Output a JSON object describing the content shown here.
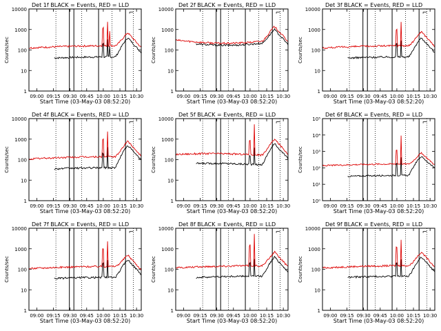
{
  "colors": {
    "events": "#000000",
    "lld": "#dd0000",
    "axes": "#000000",
    "background": "#ffffff"
  },
  "chart_data": [
    {
      "type": "line",
      "title": "Det 1f BLACK = Events, RED = LLD",
      "xlabel": "Start Time (03-May-03 08:52:20)",
      "ylabel": "Counts/sec",
      "yscale": "log",
      "xlim": [
        0,
        1
      ],
      "ylim": [
        1,
        10000
      ],
      "ytick_labels": [
        "1",
        "10",
        "100",
        "1000",
        "10000"
      ],
      "xtick_labels": [
        "09:00",
        "09:15",
        "09:30",
        "09:45",
        "10:00",
        "10:15",
        "10:30"
      ],
      "series": [
        {
          "name": "Events",
          "base": 40,
          "start": 0.22,
          "shape": "hump"
        },
        {
          "name": "LLD",
          "base": 140,
          "start": 0.0,
          "shape": "hump"
        }
      ],
      "spikes": [
        {
          "x": 0.7,
          "red": 2500,
          "black": 300
        },
        {
          "x": 0.66,
          "red": 1200,
          "black": 200
        },
        {
          "x": 0.72,
          "red": 900,
          "black": 150
        }
      ],
      "peak": {
        "x": 0.88,
        "red": 700,
        "black": 400
      },
      "solid_lines": [
        0.36,
        0.4,
        0.62,
        0.86
      ],
      "dotted_lines": [
        0.24,
        0.47,
        0.74,
        0.93
      ],
      "corner_mark": "⌐"
    },
    {
      "type": "line",
      "title": "Det 2f BLACK = Events, RED = LLD",
      "xlabel": "Start Time (03-May-03 08:52:20)",
      "ylabel": "Counts/sec",
      "yscale": "log",
      "xlim": [
        0,
        1
      ],
      "ylim": [
        1,
        10000
      ],
      "ytick_labels": [
        "1",
        "10",
        "100",
        "1000",
        "10000"
      ],
      "xtick_labels": [
        "09:00",
        "09:15",
        "09:30",
        "09:45",
        "10:00",
        "10:15",
        "10:30"
      ],
      "series": [
        {
          "name": "Events",
          "base": 200,
          "start": 0.18,
          "shape": "arch"
        },
        {
          "name": "LLD",
          "base": 250,
          "start": 0.0,
          "shape": "arch"
        }
      ],
      "spikes": [],
      "peak": {
        "x": 0.88,
        "red": 1400,
        "black": 1000
      },
      "solid_lines": [
        0.36,
        0.4,
        0.62,
        0.86
      ],
      "dotted_lines": [
        0.24,
        0.47,
        0.74,
        0.93
      ],
      "corner_mark": "⌐"
    },
    {
      "type": "line",
      "title": "Det 3f BLACK = Events, RED = LLD",
      "xlabel": "Start Time (03-May-03 08:52:20)",
      "ylabel": "Counts/sec",
      "yscale": "log",
      "xlim": [
        0,
        1
      ],
      "ylim": [
        1,
        10000
      ],
      "ytick_labels": [
        "1",
        "10",
        "100",
        "1000",
        "10000"
      ],
      "xtick_labels": [
        "09:00",
        "09:15",
        "09:30",
        "09:45",
        "10:00",
        "10:15",
        "10:30"
      ],
      "series": [
        {
          "name": "Events",
          "base": 40,
          "start": 0.22,
          "shape": "hump"
        },
        {
          "name": "LLD",
          "base": 140,
          "start": 0.0,
          "shape": "hump"
        }
      ],
      "spikes": [
        {
          "x": 0.7,
          "red": 2500,
          "black": 300
        },
        {
          "x": 0.66,
          "red": 1000,
          "black": 200
        }
      ],
      "peak": {
        "x": 0.88,
        "red": 800,
        "black": 400
      },
      "solid_lines": [
        0.36,
        0.4,
        0.62,
        0.86
      ],
      "dotted_lines": [
        0.24,
        0.47,
        0.74,
        0.93
      ],
      "corner_mark": "⌐"
    },
    {
      "type": "line",
      "title": "Det 4f BLACK = Events, RED = LLD",
      "xlabel": "Start Time (03-May-03 08:52:20)",
      "ylabel": "Counts/sec",
      "yscale": "log",
      "xlim": [
        0,
        1
      ],
      "ylim": [
        1,
        10000
      ],
      "ytick_labels": [
        "1",
        "10",
        "100",
        "1000",
        "10000"
      ],
      "xtick_labels": [
        "09:00",
        "09:15",
        "09:30",
        "09:45",
        "10:00",
        "10:15",
        "10:30"
      ],
      "series": [
        {
          "name": "Events",
          "base": 35,
          "start": 0.22,
          "shape": "hump"
        },
        {
          "name": "LLD",
          "base": 120,
          "start": 0.0,
          "shape": "hump"
        }
      ],
      "spikes": [
        {
          "x": 0.7,
          "red": 2500,
          "black": 400
        },
        {
          "x": 0.66,
          "red": 1000,
          "black": 200
        }
      ],
      "peak": {
        "x": 0.88,
        "red": 800,
        "black": 500
      },
      "solid_lines": [
        0.36,
        0.4,
        0.62,
        0.86
      ],
      "dotted_lines": [
        0.24,
        0.47,
        0.74,
        0.93
      ],
      "corner_mark": "⌐"
    },
    {
      "type": "line",
      "title": "Det 5f BLACK = Events, RED = LLD",
      "xlabel": "Start Time (03-May-03 08:52:20)",
      "ylabel": "Counts/sec",
      "yscale": "log",
      "xlim": [
        0,
        1
      ],
      "ylim": [
        1,
        10000
      ],
      "ytick_labels": [
        "1",
        "10",
        "100",
        "1000",
        "10000"
      ],
      "xtick_labels": [
        "09:00",
        "09:15",
        "09:30",
        "09:45",
        "10:00",
        "10:15",
        "10:30"
      ],
      "series": [
        {
          "name": "Events",
          "base": 60,
          "start": 0.18,
          "shape": "flat"
        },
        {
          "name": "LLD",
          "base": 180,
          "start": 0.0,
          "shape": "flat"
        }
      ],
      "spikes": [
        {
          "x": 0.7,
          "red": 5000,
          "black": 400
        },
        {
          "x": 0.66,
          "red": 900,
          "black": 150
        }
      ],
      "peak": {
        "x": 0.88,
        "red": 1000,
        "black": 600
      },
      "solid_lines": [
        0.36,
        0.4,
        0.62,
        0.86
      ],
      "dotted_lines": [
        0.24,
        0.47,
        0.74,
        0.93
      ],
      "corner_mark": "⌐"
    },
    {
      "type": "line",
      "title": "Det 6f BLACK = Events, RED = LLD",
      "xlabel": "Start Time (03-May-03 08:52:20)",
      "ylabel": "Counts/sec",
      "yscale": "log",
      "xlim": [
        0,
        1
      ],
      "ylim": [
        1,
        100000
      ],
      "ytick_labels": [
        "10⁰",
        "10¹",
        "10²",
        "10³",
        "10⁴",
        "10⁵"
      ],
      "xtick_labels": [
        "09:00",
        "09:15",
        "09:30",
        "09:45",
        "10:00",
        "10:15",
        "10:30"
      ],
      "series": [
        {
          "name": "Events",
          "base": 30,
          "start": 0.22,
          "shape": "hump"
        },
        {
          "name": "LLD",
          "base": 150,
          "start": 0.0,
          "shape": "hump"
        }
      ],
      "spikes": [
        {
          "x": 0.7,
          "red": 10000,
          "black": 400
        },
        {
          "x": 0.66,
          "red": 1200,
          "black": 200
        }
      ],
      "peak": {
        "x": 0.88,
        "red": 800,
        "black": 500
      },
      "solid_lines": [
        0.36,
        0.4,
        0.62,
        0.86
      ],
      "dotted_lines": [
        0.24,
        0.47,
        0.74,
        0.93
      ],
      "corner_mark": "⌐"
    },
    {
      "type": "line",
      "title": "Det 7f BLACK = Events, RED = LLD",
      "xlabel": "Start Time (03-May-03 08:52:20)",
      "ylabel": "Counts/sec",
      "yscale": "log",
      "xlim": [
        0,
        1
      ],
      "ylim": [
        1,
        10000
      ],
      "ytick_labels": [
        "1",
        "10",
        "100",
        "1000",
        "10000"
      ],
      "xtick_labels": [
        "09:00",
        "09:15",
        "09:30",
        "09:45",
        "10:00",
        "10:15",
        "10:30"
      ],
      "series": [
        {
          "name": "Events",
          "base": 35,
          "start": 0.22,
          "shape": "hump"
        },
        {
          "name": "LLD",
          "base": 120,
          "start": 0.0,
          "shape": "hump"
        }
      ],
      "spikes": [
        {
          "x": 0.7,
          "red": 2500,
          "black": 300
        },
        {
          "x": 0.66,
          "red": 1000,
          "black": 200
        }
      ],
      "peak": {
        "x": 0.88,
        "red": 500,
        "black": 300
      },
      "solid_lines": [
        0.36,
        0.4,
        0.62,
        0.86
      ],
      "dotted_lines": [
        0.24,
        0.47,
        0.74,
        0.93
      ],
      "corner_mark": "⌐"
    },
    {
      "type": "line",
      "title": "Det 8f BLACK = Events, RED = LLD",
      "xlabel": "Start Time (03-May-03 08:52:20)",
      "ylabel": "Counts/sec",
      "yscale": "log",
      "xlim": [
        0,
        1
      ],
      "ylim": [
        1,
        10000
      ],
      "ytick_labels": [
        "1",
        "10",
        "100",
        "1000",
        "10000"
      ],
      "xtick_labels": [
        "09:00",
        "09:15",
        "09:30",
        "09:45",
        "10:00",
        "10:15",
        "10:30"
      ],
      "series": [
        {
          "name": "Events",
          "base": 40,
          "start": 0.18,
          "shape": "hump"
        },
        {
          "name": "LLD",
          "base": 130,
          "start": 0.0,
          "shape": "hump"
        }
      ],
      "spikes": [
        {
          "x": 0.7,
          "red": 5000,
          "black": 300
        },
        {
          "x": 0.66,
          "red": 1500,
          "black": 200
        }
      ],
      "peak": {
        "x": 0.88,
        "red": 700,
        "black": 400
      },
      "solid_lines": [
        0.36,
        0.4,
        0.62,
        0.86
      ],
      "dotted_lines": [
        0.24,
        0.47,
        0.74,
        0.93
      ],
      "corner_mark": "⌐"
    },
    {
      "type": "line",
      "title": "Det 9f BLACK = Events, RED = LLD",
      "xlabel": "Start Time (03-May-03 08:52:20)",
      "ylabel": "Counts/sec",
      "yscale": "log",
      "xlim": [
        0,
        1
      ],
      "ylim": [
        1,
        10000
      ],
      "ytick_labels": [
        "1",
        "10",
        "100",
        "1000",
        "10000"
      ],
      "xtick_labels": [
        "09:00",
        "09:15",
        "09:30",
        "09:45",
        "10:00",
        "10:15",
        "10:30"
      ],
      "series": [
        {
          "name": "Events",
          "base": 40,
          "start": 0.22,
          "shape": "hump"
        },
        {
          "name": "LLD",
          "base": 130,
          "start": 0.0,
          "shape": "hump"
        }
      ],
      "spikes": [
        {
          "x": 0.7,
          "red": 3000,
          "black": 300
        },
        {
          "x": 0.66,
          "red": 1200,
          "black": 200
        }
      ],
      "peak": {
        "x": 0.88,
        "red": 700,
        "black": 400
      },
      "solid_lines": [
        0.36,
        0.4,
        0.62,
        0.86
      ],
      "dotted_lines": [
        0.24,
        0.47,
        0.74,
        0.93
      ],
      "corner_mark": "⌐"
    }
  ]
}
